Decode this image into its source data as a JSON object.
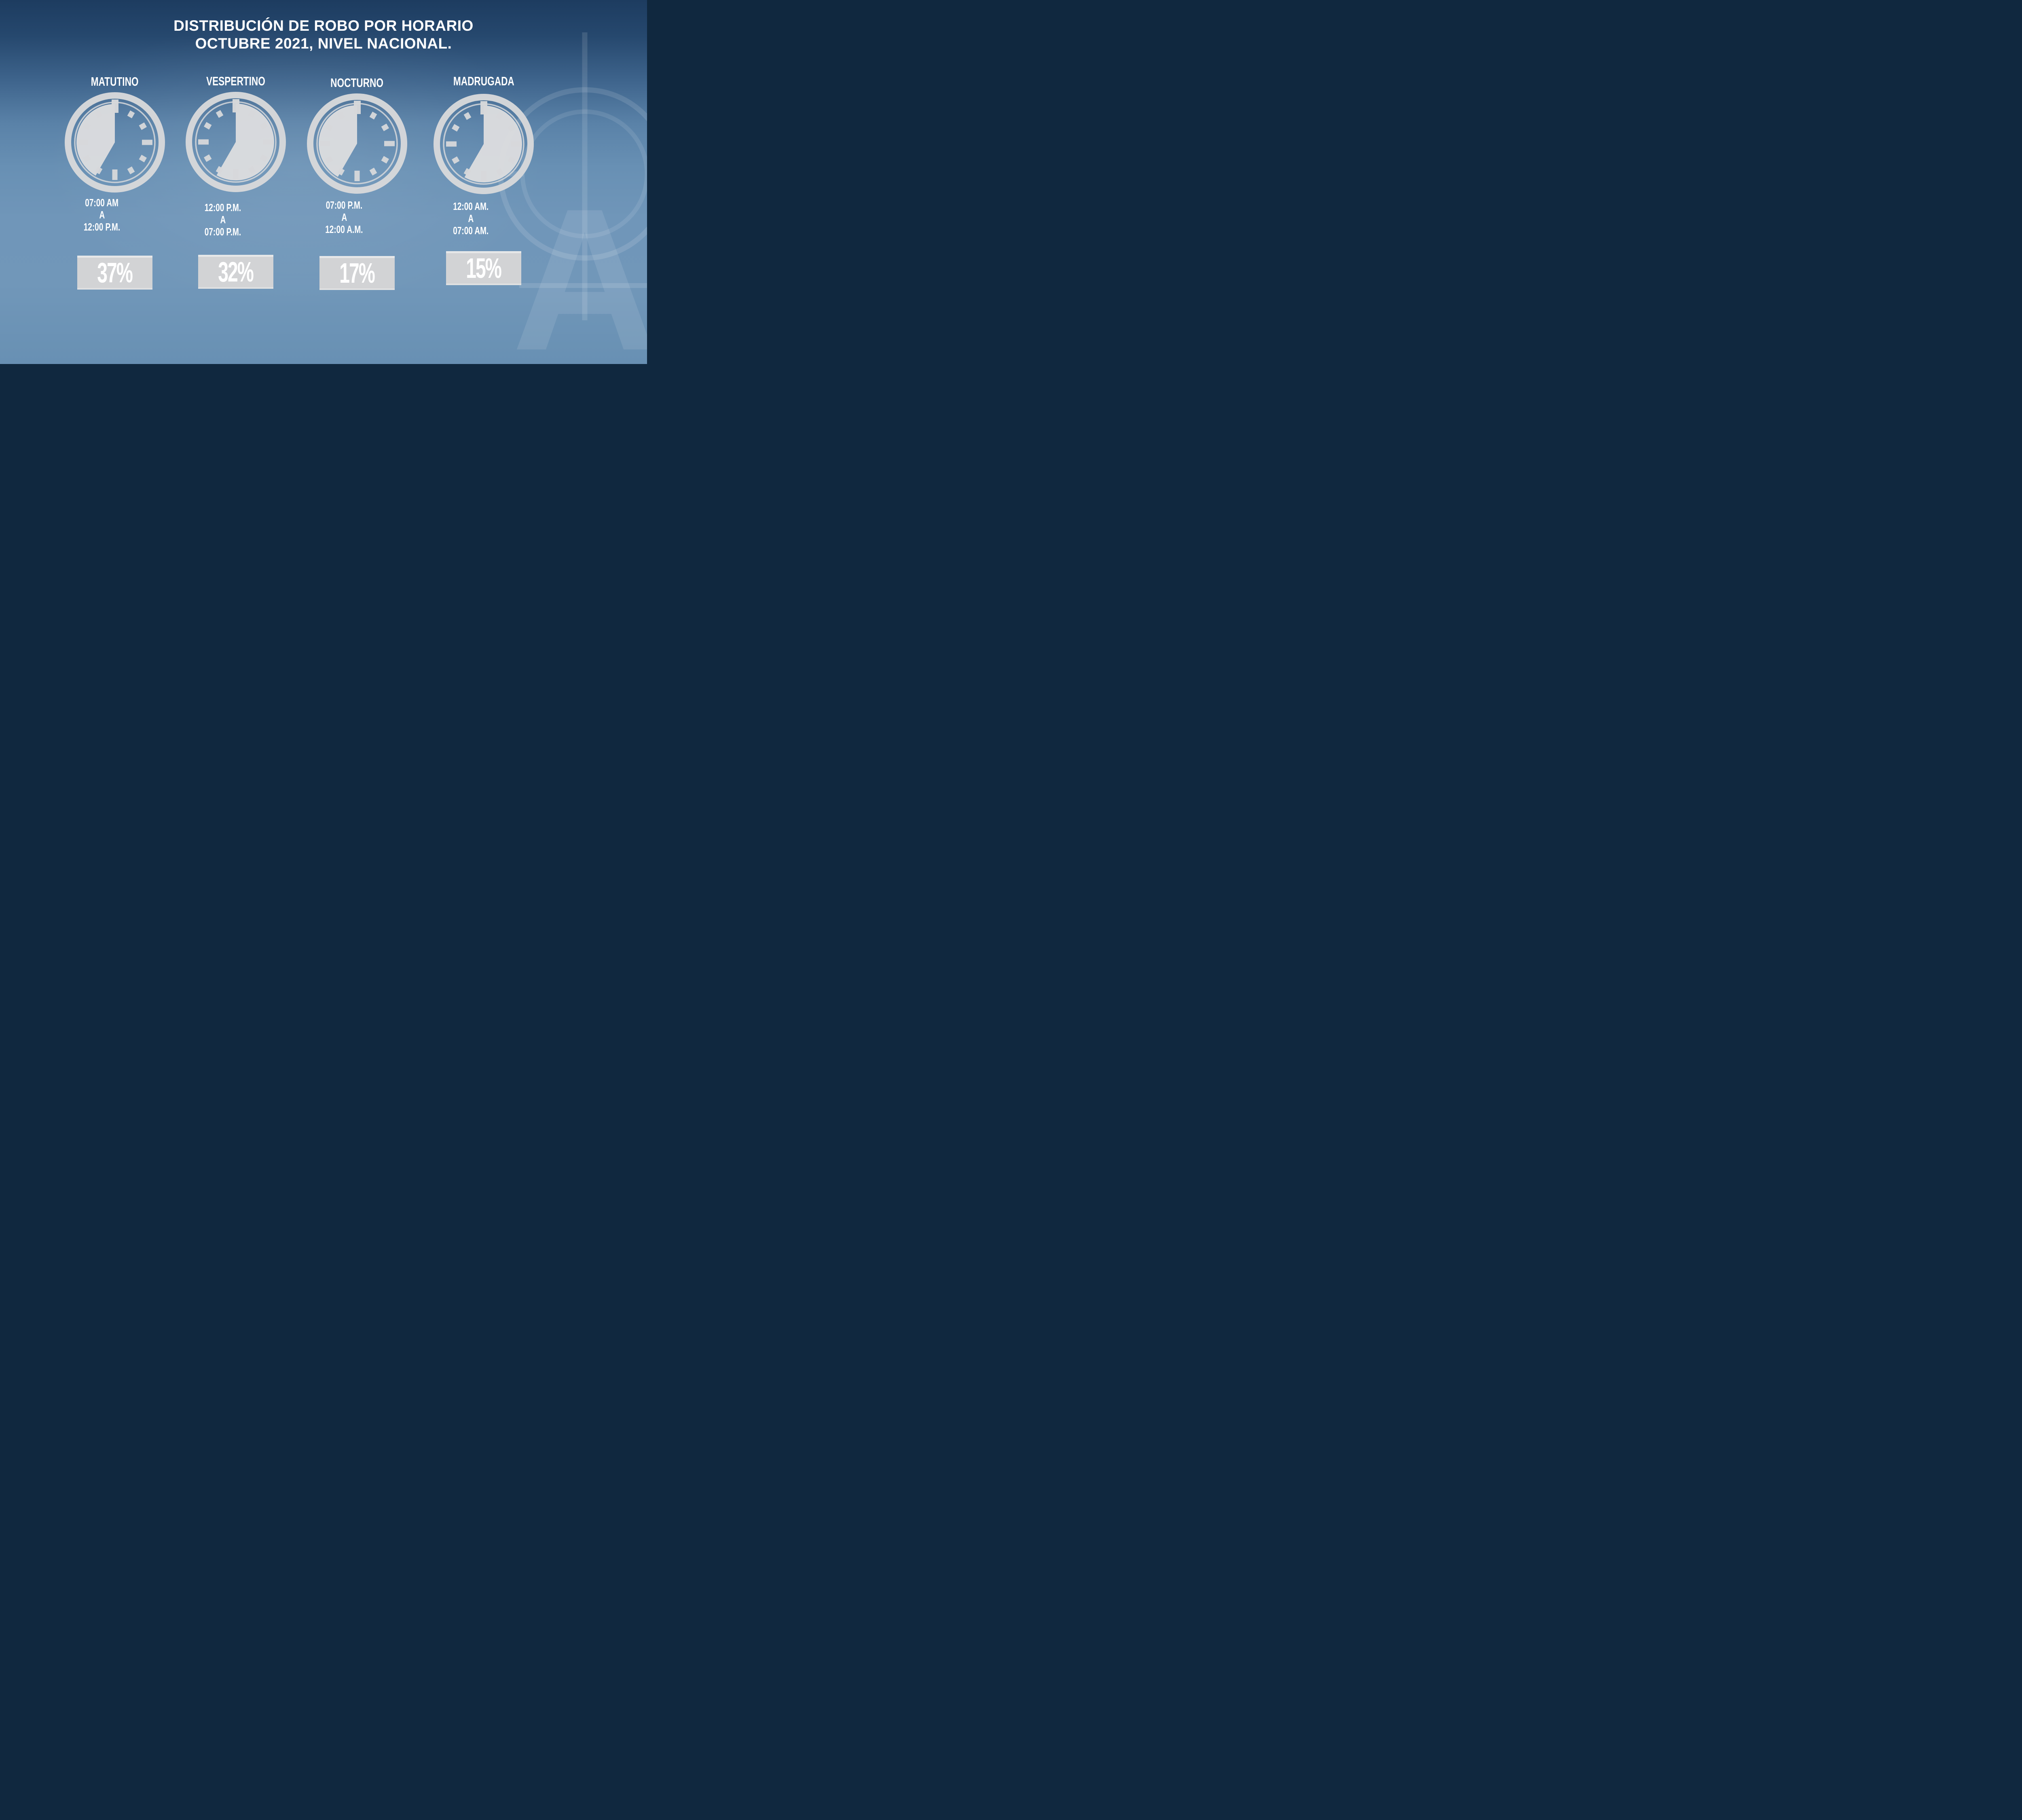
{
  "title": {
    "line1": "DISTRIBUCIÓN DE ROBO POR HORARIO",
    "line2": "OCTUBRE 2021, NIVEL NACIONAL."
  },
  "periods": [
    {
      "label": "MATUTINO",
      "time_from": "07:00 AM",
      "connector": "A",
      "time_to": "12:00 P.M.",
      "percent": "37%",
      "wedge_from_hour": 7,
      "wedge_to_hour": 12
    },
    {
      "label": "VESPERTINO",
      "time_from": "12:00 P.M.",
      "connector": "A",
      "time_to": "07:00 P.M.",
      "percent": "32%",
      "wedge_from_hour": 12,
      "wedge_to_hour": 19
    },
    {
      "label": "NOCTURNO",
      "time_from": "07:00 P.M.",
      "connector": "A",
      "time_to": "12:00 A.M.",
      "percent": "17%",
      "wedge_from_hour": 19,
      "wedge_to_hour": 24
    },
    {
      "label": "MADRUGADA",
      "time_from": "12:00 AM.",
      "connector": "A",
      "time_to": "07:00 AM.",
      "percent": "15%",
      "wedge_from_hour": 0,
      "wedge_to_hour": 7
    }
  ],
  "watermark": {
    "letter": "A"
  },
  "colors": {
    "background_top": "#1d3c60",
    "background_mid": "#7096b9",
    "clock_gray": "#d7d8da",
    "badge_gray": "#d2d3d5",
    "text_white": "#ffffff"
  },
  "chart_data": {
    "type": "pie",
    "title": "DISTRIBUCIÓN DE ROBO POR HORARIO OCTUBRE 2021, NIVEL NACIONAL.",
    "categories": [
      "MATUTINO (07:00 AM A 12:00 P.M.)",
      "VESPERTINO (12:00 P.M. A 07:00 P.M.)",
      "NOCTURNO (07:00 P.M. A 12:00 A.M.)",
      "MADRUGADA (12:00 AM. A 07:00 AM.)"
    ],
    "values": [
      37,
      32,
      17,
      15
    ],
    "unit": "%",
    "legend_position": "none",
    "notes": "Percentages shown in gray badges under clock pictograms; clock wedges depict each time range."
  }
}
